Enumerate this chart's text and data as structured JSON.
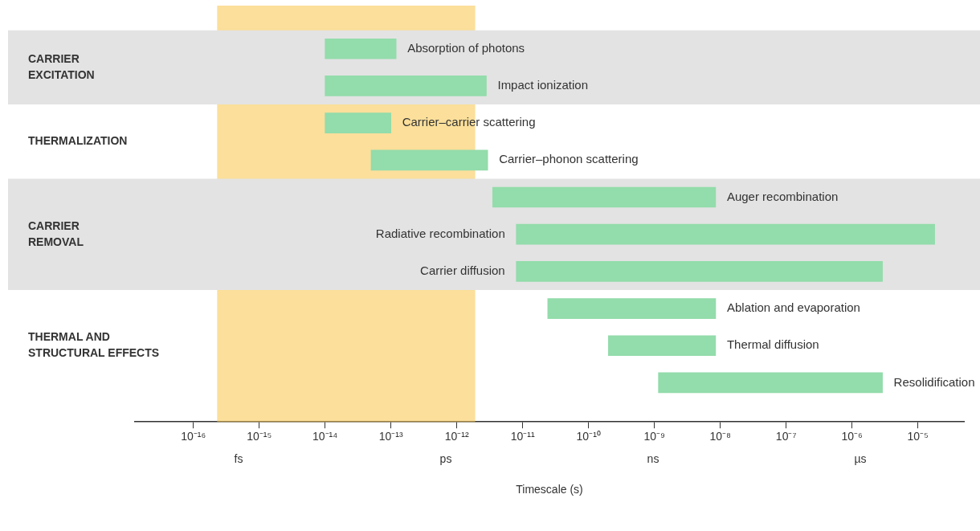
{
  "chart_data": {
    "type": "bar",
    "orientation": "horizontal",
    "log": "x",
    "xlabel": "Timescale (s)",
    "categories": [
      "Absorption of photons",
      "Impact ionization",
      "Carrier–carrier scattering",
      "Carrier–phonon scattering",
      "Auger recombination",
      "Radiative recombination",
      "Carrier diffusion",
      "Ablation and evaporation",
      "Thermal diffusion",
      "Resolidification"
    ],
    "base": [
      1e-14,
      1e-14,
      1e-14,
      5e-14,
      3.5e-12,
      8e-12,
      8e-12,
      2.4e-11,
      2e-10,
      1.15e-09
    ],
    "values": [
      1.1e-13,
      2.8e-12,
      9e-14,
      2.9e-12,
      8.5e-09,
      1.8e-05,
      2.9e-06,
      8.5e-09,
      8.3e-09,
      2.9e-06
    ],
    "color": "#93dcab",
    "xlim": [
      1.3e-17,
      5e-05
    ],
    "xticks": [
      {
        "value": 1e-16,
        "label": "10⁻¹⁶"
      },
      {
        "value": 1e-15,
        "label": "10⁻¹⁵"
      },
      {
        "value": 1e-14,
        "label": "10⁻¹⁴"
      },
      {
        "value": 1e-13,
        "label": "10⁻¹³"
      },
      {
        "value": 1e-12,
        "label": "10⁻¹²"
      },
      {
        "value": 1e-11,
        "label": "10⁻¹¹"
      },
      {
        "value": 1e-10,
        "label": "10⁻¹⁰"
      },
      {
        "value": 1e-09,
        "label": "10⁻⁹"
      },
      {
        "value": 1e-08,
        "label": "10⁻⁸"
      },
      {
        "value": 1e-07,
        "label": "10⁻⁷"
      },
      {
        "value": 1e-06,
        "label": "10⁻⁶"
      },
      {
        "value": 1e-05,
        "label": "10⁻⁵"
      }
    ],
    "tick_labels": "x",
    "grid": false,
    "legend": false,
    "bands": [
      {
        "axis": "x",
        "from": 2.3e-16,
        "to": 1.9e-12,
        "color": "#f7c447"
      },
      {
        "axis": "y",
        "from": "Absorption of photons",
        "to": "Impact ionization",
        "color": "#e3e3e3"
      },
      {
        "axis": "y",
        "from": "Auger recombination",
        "to": "Carrier diffusion",
        "color": "#e3e3e3"
      }
    ],
    "annotations": [
      "CARRIER\nEXCITATION",
      "THERMALIZATION",
      "CARRIER\nREMOVAL",
      "THERMAL AND\nSTRUCTURAL EFFECTS",
      "fs",
      "ps",
      "ns",
      "µs"
    ]
  }
}
